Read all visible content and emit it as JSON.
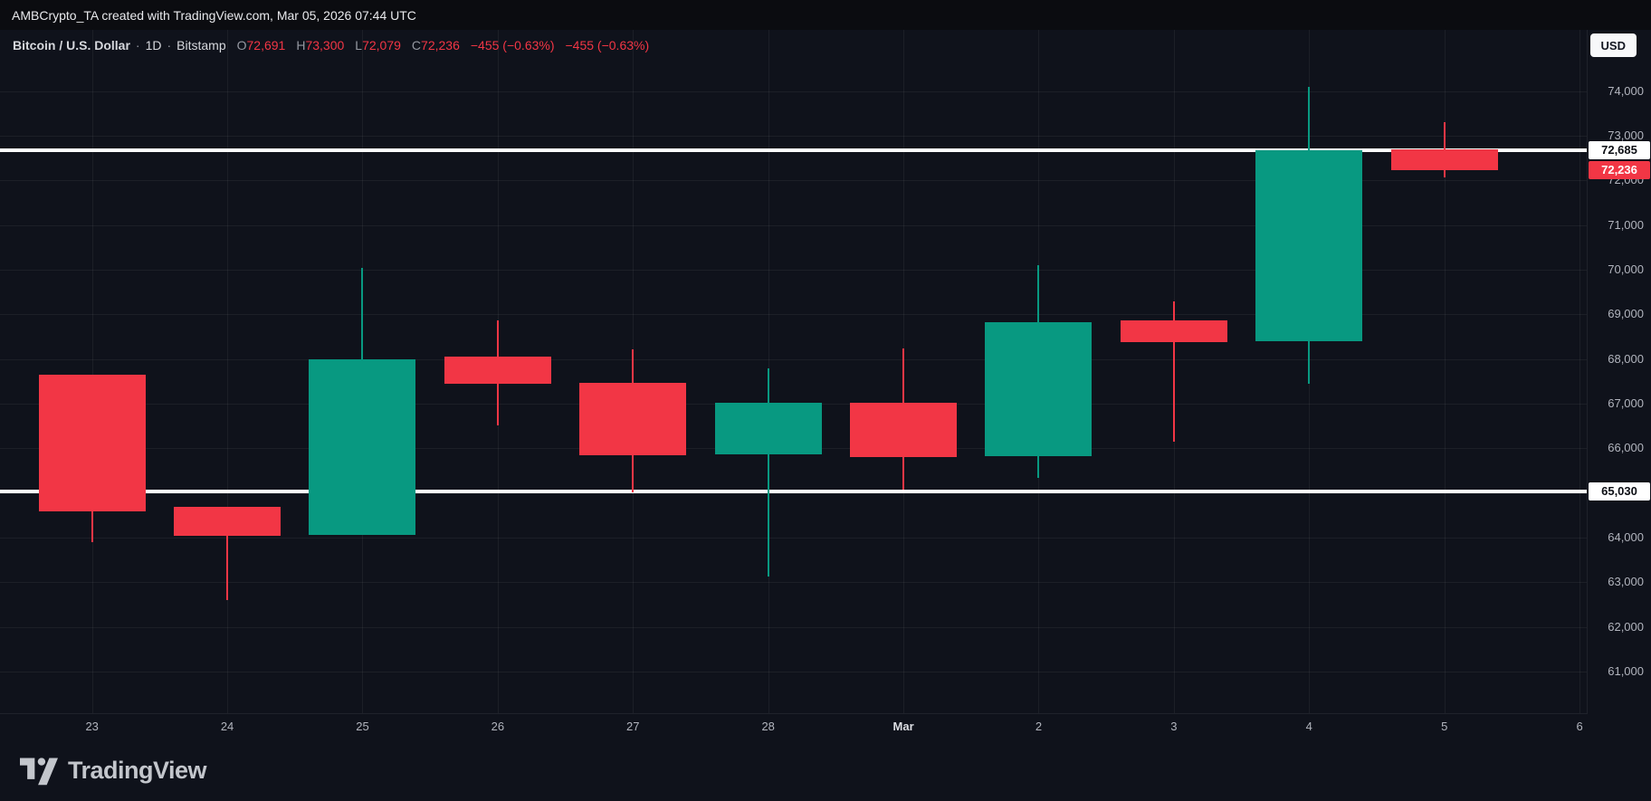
{
  "attribution": {
    "text": "AMBCrypto_TA created with TradingView.com, Mar 05, 2026 07:44 UTC"
  },
  "legend": {
    "symbol": "Bitcoin / U.S. Dollar",
    "sep": "·",
    "interval": "1D",
    "exchange": "Bitstamp",
    "ohlc": [
      {
        "label": "O",
        "value": "72,691"
      },
      {
        "label": "H",
        "value": "73,300"
      },
      {
        "label": "L",
        "value": "72,079"
      },
      {
        "label": "C",
        "value": "72,236"
      }
    ],
    "change_abs": "−455 (−0.63%)",
    "change_pct": "−455 (−0.63%)"
  },
  "axis": {
    "currency": "USD"
  },
  "footer": {
    "brand": "TradingView"
  },
  "colors": {
    "up": "#089981",
    "down": "#f23645",
    "line": "#ffffff",
    "background": "#0f121b",
    "axis_text": "#b2b5be"
  },
  "chart_data": {
    "type": "candlestick",
    "title": "Bitcoin / U.S. Dollar · 1D · Bitstamp",
    "subtitle": "Mar 05, 2026 07:44 UTC",
    "x_labels": [
      "23",
      "24",
      "25",
      "26",
      "27",
      "28",
      "Mar",
      "2",
      "3",
      "4",
      "5",
      "6"
    ],
    "y_ticks": [
      74000,
      73000,
      72000,
      71000,
      70000,
      69000,
      68000,
      67000,
      66000,
      65000,
      64000,
      63000,
      62000,
      61000
    ],
    "ylim": [
      60070,
      75375
    ],
    "grid": true,
    "candles": [
      {
        "label": "23",
        "open": 67650,
        "high": 67650,
        "low": 63900,
        "close": 64600,
        "dir": "down"
      },
      {
        "label": "24",
        "open": 64700,
        "high": 64700,
        "low": 62600,
        "close": 64050,
        "dir": "down"
      },
      {
        "label": "25",
        "open": 64070,
        "high": 70050,
        "low": 64070,
        "close": 68000,
        "dir": "up"
      },
      {
        "label": "26",
        "open": 68050,
        "high": 68870,
        "low": 66520,
        "close": 67440,
        "dir": "down"
      },
      {
        "label": "27",
        "open": 67460,
        "high": 68210,
        "low": 65020,
        "close": 65850,
        "dir": "down"
      },
      {
        "label": "28",
        "open": 65870,
        "high": 67790,
        "low": 63130,
        "close": 67020,
        "dir": "up"
      },
      {
        "label": "Mar",
        "open": 67020,
        "high": 68230,
        "low": 65080,
        "close": 65800,
        "dir": "down"
      },
      {
        "label": "2",
        "open": 65830,
        "high": 70110,
        "low": 65340,
        "close": 68820,
        "dir": "up"
      },
      {
        "label": "3",
        "open": 68870,
        "high": 69290,
        "low": 66150,
        "close": 68380,
        "dir": "down"
      },
      {
        "label": "4",
        "open": 68400,
        "high": 74100,
        "low": 67440,
        "close": 72685,
        "dir": "up"
      },
      {
        "label": "5",
        "open": 72691,
        "high": 73300,
        "low": 72079,
        "close": 72236,
        "dir": "down"
      }
    ],
    "horizontal_lines": [
      {
        "price": 72685,
        "label": "72,685"
      },
      {
        "price": 65030,
        "label": "65,030"
      }
    ],
    "last_price_label": {
      "price": 72236,
      "label": "72,236"
    }
  }
}
